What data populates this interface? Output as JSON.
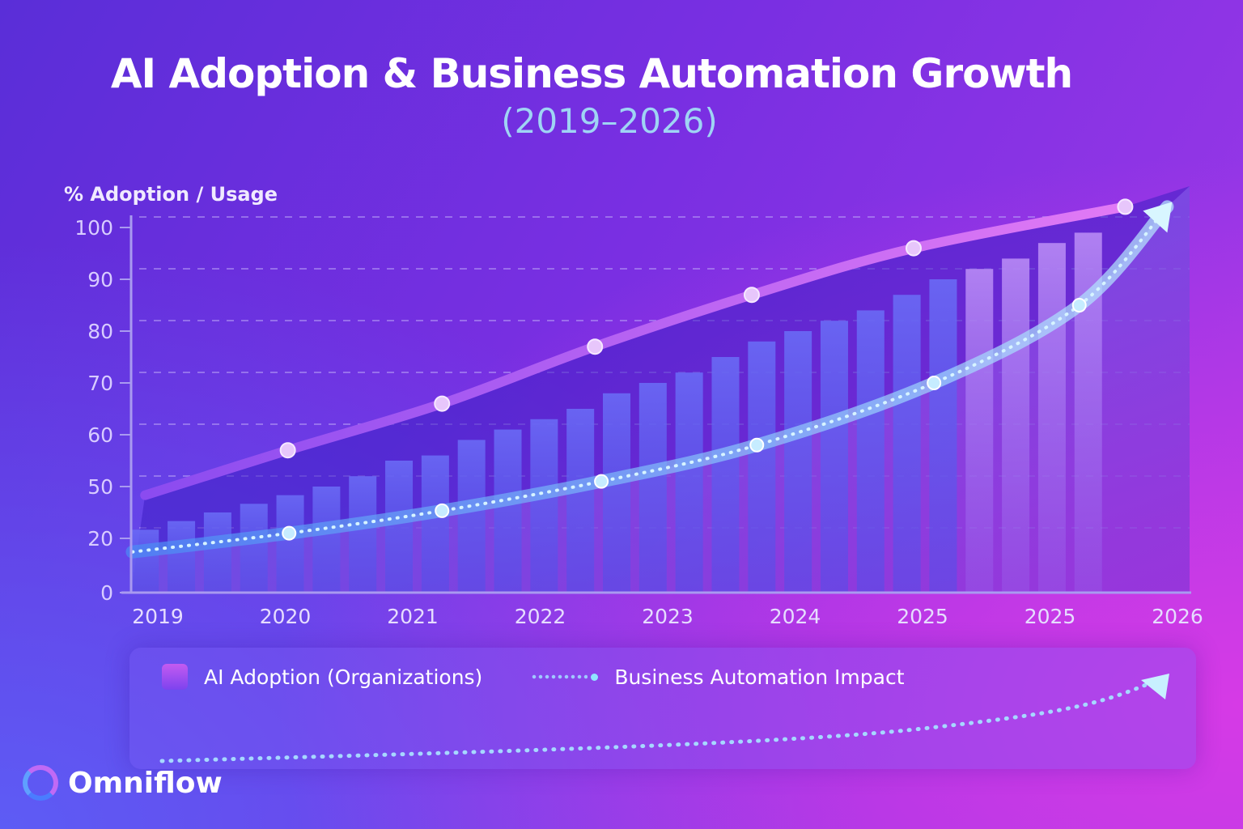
{
  "chart_data": {
    "type": "bar+line",
    "title": "AI Adoption & Business Automation Growth",
    "subtitle": "(2019–2026)",
    "ylabel": "% Adoption / Usage",
    "xlabel": "",
    "y_ticks": [
      0,
      20,
      50,
      60,
      70,
      80,
      90,
      100
    ],
    "x_ticks": [
      "2019",
      "2020",
      "2021",
      "2022",
      "2023",
      "2024",
      "2025",
      "2025",
      "2026"
    ],
    "grid": "dashed horizontal",
    "colors": {
      "bars": "#5a5cf0",
      "adoption_line": "#b565f0",
      "automation_line": "#5aa8ff",
      "automation_dots": "#bfefff"
    },
    "bars": {
      "name": "AI Adoption (Organizations)",
      "x_start": -0.1,
      "x_end": 7.3,
      "values": [
        25,
        30,
        35,
        40,
        45,
        50,
        52,
        55,
        56,
        59,
        61,
        63,
        65,
        68,
        70,
        72,
        75,
        78,
        80,
        82,
        84,
        87,
        90,
        92,
        94,
        97,
        99
      ]
    },
    "adoption_line": {
      "x": [
        -0.1,
        1.02,
        2.23,
        3.43,
        4.66,
        5.93,
        7.59
      ],
      "y": [
        45,
        57,
        66,
        77,
        87,
        96,
        104
      ]
    },
    "automation_line": {
      "name": "Business Automation Impact",
      "x": [
        -0.2,
        1.03,
        2.23,
        3.48,
        4.7,
        6.09,
        7.23,
        7.92
      ],
      "y": [
        15,
        23,
        36,
        51,
        58,
        70,
        85,
        104
      ]
    }
  },
  "legend": {
    "bars_label": "AI Adoption (Organizations)",
    "line_label": "Business Automation Impact"
  },
  "brand": {
    "name": "Omniflow"
  }
}
